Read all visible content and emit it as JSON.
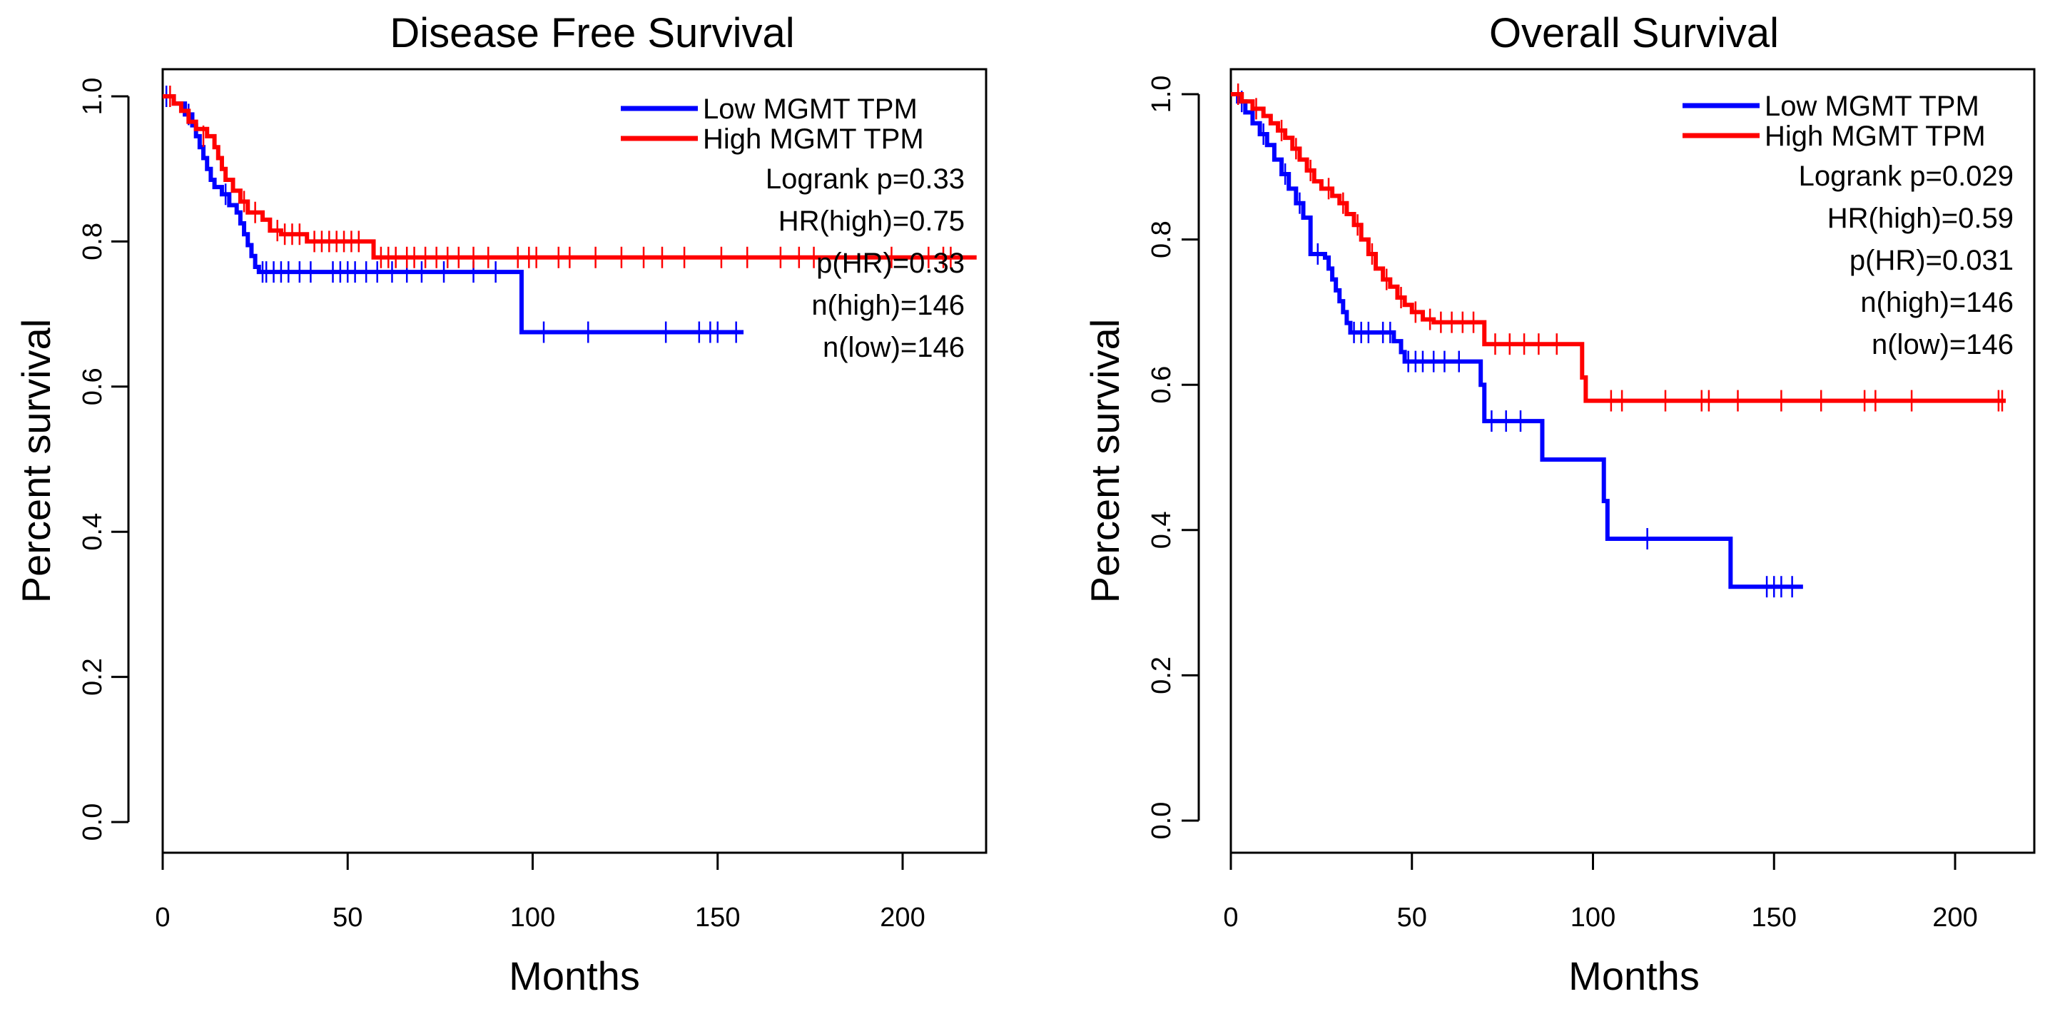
{
  "chart_data": [
    {
      "type": "line",
      "subtype": "kaplan-meier",
      "title": "Disease Free Survival",
      "xlabel": "Months",
      "ylabel": "Percent survival",
      "xlim": [
        0,
        220
      ],
      "ylim": [
        0,
        1
      ],
      "xticks": [
        "0",
        "50",
        "100",
        "150",
        "200"
      ],
      "yticks": [
        "0.0",
        "0.2",
        "0.4",
        "0.6",
        "0.8",
        "1.0"
      ],
      "grid": false,
      "legend_position": "top-right",
      "series": [
        {
          "name": "Low MGMT TPM",
          "color": "#0000ff",
          "steps": [
            [
              0,
              1.0
            ],
            [
              3,
              0.99
            ],
            [
              6,
              0.975
            ],
            [
              8,
              0.96
            ],
            [
              9,
              0.945
            ],
            [
              10,
              0.93
            ],
            [
              11,
              0.915
            ],
            [
              12,
              0.9
            ],
            [
              13,
              0.885
            ],
            [
              14,
              0.875
            ],
            [
              16,
              0.865
            ],
            [
              18,
              0.85
            ],
            [
              20,
              0.84
            ],
            [
              21,
              0.825
            ],
            [
              22,
              0.81
            ],
            [
              23,
              0.795
            ],
            [
              24,
              0.78
            ],
            [
              25,
              0.765
            ],
            [
              26,
              0.758
            ],
            [
              97,
              0.758
            ],
            [
              97,
              0.675
            ],
            [
              157,
              0.675
            ]
          ],
          "censor_marks": [
            [
              1,
              1.0
            ],
            [
              7,
              0.975
            ],
            [
              17,
              0.865
            ],
            [
              27,
              0.758
            ],
            [
              28,
              0.758
            ],
            [
              30,
              0.758
            ],
            [
              32,
              0.758
            ],
            [
              34,
              0.758
            ],
            [
              37,
              0.758
            ],
            [
              40,
              0.758
            ],
            [
              46,
              0.758
            ],
            [
              48,
              0.758
            ],
            [
              50,
              0.758
            ],
            [
              52,
              0.758
            ],
            [
              55,
              0.758
            ],
            [
              58,
              0.758
            ],
            [
              62,
              0.758
            ],
            [
              66,
              0.758
            ],
            [
              70,
              0.758
            ],
            [
              76,
              0.758
            ],
            [
              84,
              0.758
            ],
            [
              90,
              0.758
            ],
            [
              103,
              0.675
            ],
            [
              115,
              0.675
            ],
            [
              136,
              0.675
            ],
            [
              145,
              0.675
            ],
            [
              148,
              0.675
            ],
            [
              150,
              0.675
            ],
            [
              155,
              0.675
            ]
          ]
        },
        {
          "name": "High MGMT TPM",
          "color": "#ff0000",
          "steps": [
            [
              0,
              1.0
            ],
            [
              3,
              0.99
            ],
            [
              5,
              0.98
            ],
            [
              7,
              0.965
            ],
            [
              9,
              0.955
            ],
            [
              12,
              0.945
            ],
            [
              14,
              0.93
            ],
            [
              15,
              0.915
            ],
            [
              16,
              0.9
            ],
            [
              17,
              0.885
            ],
            [
              19,
              0.87
            ],
            [
              21,
              0.855
            ],
            [
              23,
              0.84
            ],
            [
              27,
              0.83
            ],
            [
              29,
              0.815
            ],
            [
              32,
              0.81
            ],
            [
              38,
              0.81
            ],
            [
              39,
              0.8
            ],
            [
              56,
              0.8
            ],
            [
              57,
              0.778
            ],
            [
              220,
              0.778
            ]
          ],
          "censor_marks": [
            [
              2,
              1.0
            ],
            [
              11,
              0.945
            ],
            [
              22,
              0.855
            ],
            [
              25,
              0.84
            ],
            [
              31,
              0.815
            ],
            [
              33,
              0.81
            ],
            [
              35,
              0.81
            ],
            [
              37,
              0.81
            ],
            [
              41,
              0.8
            ],
            [
              43,
              0.8
            ],
            [
              45,
              0.8
            ],
            [
              47,
              0.8
            ],
            [
              49,
              0.8
            ],
            [
              51,
              0.8
            ],
            [
              53,
              0.8
            ],
            [
              59,
              0.778
            ],
            [
              61,
              0.778
            ],
            [
              63,
              0.778
            ],
            [
              66,
              0.778
            ],
            [
              68,
              0.778
            ],
            [
              71,
              0.778
            ],
            [
              74,
              0.778
            ],
            [
              77,
              0.778
            ],
            [
              80,
              0.778
            ],
            [
              84,
              0.778
            ],
            [
              88,
              0.778
            ],
            [
              96,
              0.778
            ],
            [
              99,
              0.778
            ],
            [
              101,
              0.778
            ],
            [
              107,
              0.778
            ],
            [
              110,
              0.778
            ],
            [
              117,
              0.778
            ],
            [
              124,
              0.778
            ],
            [
              130,
              0.778
            ],
            [
              135,
              0.778
            ],
            [
              141,
              0.778
            ],
            [
              151,
              0.778
            ],
            [
              158,
              0.778
            ],
            [
              167,
              0.778
            ],
            [
              172,
              0.778
            ],
            [
              176,
              0.778
            ],
            [
              197,
              0.778
            ],
            [
              207,
              0.778
            ],
            [
              211,
              0.778
            ],
            [
              213,
              0.778
            ]
          ]
        }
      ],
      "stats": {
        "logrank": "Logrank p=0.33",
        "hr": "HR(high)=0.75",
        "p_hr": "p(HR)=0.33",
        "n_high": "n(high)=146",
        "n_low": "n(low)=146"
      }
    },
    {
      "type": "line",
      "subtype": "kaplan-meier",
      "title": "Overall Survival",
      "xlabel": "Months",
      "ylabel": "Percent survival",
      "xlim": [
        0,
        220
      ],
      "ylim": [
        0,
        1
      ],
      "xticks": [
        "0",
        "50",
        "100",
        "150",
        "200"
      ],
      "yticks": [
        "0.0",
        "0.2",
        "0.4",
        "0.6",
        "0.8",
        "1.0"
      ],
      "grid": false,
      "legend_position": "top-right",
      "series": [
        {
          "name": "Low MGMT TPM",
          "color": "#0000ff",
          "steps": [
            [
              0,
              1.0
            ],
            [
              2,
              0.99
            ],
            [
              4,
              0.975
            ],
            [
              6,
              0.96
            ],
            [
              8,
              0.945
            ],
            [
              10,
              0.93
            ],
            [
              12,
              0.91
            ],
            [
              14,
              0.89
            ],
            [
              16,
              0.87
            ],
            [
              18,
              0.85
            ],
            [
              20,
              0.83
            ],
            [
              22,
              0.78
            ],
            [
              26,
              0.775
            ],
            [
              27,
              0.76
            ],
            [
              28,
              0.745
            ],
            [
              29,
              0.73
            ],
            [
              30,
              0.715
            ],
            [
              31,
              0.7
            ],
            [
              32,
              0.685
            ],
            [
              33,
              0.672
            ],
            [
              40,
              0.672
            ],
            [
              45,
              0.66
            ],
            [
              47,
              0.645
            ],
            [
              48,
              0.632
            ],
            [
              68,
              0.632
            ],
            [
              69,
              0.6
            ],
            [
              70,
              0.55
            ],
            [
              85,
              0.55
            ],
            [
              86,
              0.497
            ],
            [
              102,
              0.497
            ],
            [
              103,
              0.44
            ],
            [
              104,
              0.388
            ],
            [
              137,
              0.388
            ],
            [
              138,
              0.322
            ],
            [
              158,
              0.322
            ]
          ],
          "censor_marks": [
            [
              3,
              0.99
            ],
            [
              9,
              0.945
            ],
            [
              15,
              0.89
            ],
            [
              19,
              0.85
            ],
            [
              24,
              0.78
            ],
            [
              34,
              0.672
            ],
            [
              36,
              0.672
            ],
            [
              38,
              0.672
            ],
            [
              42,
              0.672
            ],
            [
              44,
              0.672
            ],
            [
              49,
              0.632
            ],
            [
              51,
              0.632
            ],
            [
              53,
              0.632
            ],
            [
              56,
              0.632
            ],
            [
              59,
              0.632
            ],
            [
              63,
              0.632
            ],
            [
              72,
              0.55
            ],
            [
              76,
              0.55
            ],
            [
              80,
              0.55
            ],
            [
              115,
              0.388
            ],
            [
              148,
              0.322
            ],
            [
              150,
              0.322
            ],
            [
              152,
              0.322
            ],
            [
              155,
              0.322
            ]
          ]
        },
        {
          "name": "High MGMT TPM",
          "color": "#ff0000",
          "steps": [
            [
              0,
              1.0
            ],
            [
              3,
              0.99
            ],
            [
              6,
              0.98
            ],
            [
              9,
              0.97
            ],
            [
              11,
              0.96
            ],
            [
              13,
              0.95
            ],
            [
              15,
              0.94
            ],
            [
              17,
              0.925
            ],
            [
              19,
              0.91
            ],
            [
              21,
              0.895
            ],
            [
              23,
              0.88
            ],
            [
              25,
              0.87
            ],
            [
              28,
              0.86
            ],
            [
              30,
              0.85
            ],
            [
              32,
              0.835
            ],
            [
              34,
              0.82
            ],
            [
              36,
              0.8
            ],
            [
              38,
              0.78
            ],
            [
              40,
              0.76
            ],
            [
              42,
              0.745
            ],
            [
              44,
              0.735
            ],
            [
              46,
              0.72
            ],
            [
              48,
              0.71
            ],
            [
              50,
              0.7
            ],
            [
              53,
              0.69
            ],
            [
              56,
              0.686
            ],
            [
              69,
              0.686
            ],
            [
              70,
              0.656
            ],
            [
              96,
              0.656
            ],
            [
              97,
              0.61
            ],
            [
              98,
              0.578
            ],
            [
              214,
              0.578
            ]
          ],
          "censor_marks": [
            [
              2,
              1.0
            ],
            [
              7,
              0.98
            ],
            [
              14,
              0.95
            ],
            [
              18,
              0.925
            ],
            [
              22,
              0.895
            ],
            [
              27,
              0.87
            ],
            [
              31,
              0.85
            ],
            [
              35,
              0.82
            ],
            [
              39,
              0.78
            ],
            [
              43,
              0.745
            ],
            [
              47,
              0.72
            ],
            [
              51,
              0.7
            ],
            [
              55,
              0.69
            ],
            [
              58,
              0.686
            ],
            [
              61,
              0.686
            ],
            [
              64,
              0.686
            ],
            [
              67,
              0.686
            ],
            [
              73,
              0.656
            ],
            [
              77,
              0.656
            ],
            [
              81,
              0.656
            ],
            [
              85,
              0.656
            ],
            [
              90,
              0.656
            ],
            [
              105,
              0.578
            ],
            [
              108,
              0.578
            ],
            [
              120,
              0.578
            ],
            [
              130,
              0.578
            ],
            [
              132,
              0.578
            ],
            [
              140,
              0.578
            ],
            [
              152,
              0.578
            ],
            [
              163,
              0.578
            ],
            [
              175,
              0.578
            ],
            [
              178,
              0.578
            ],
            [
              188,
              0.578
            ],
            [
              212,
              0.578
            ],
            [
              213,
              0.578
            ]
          ]
        }
      ],
      "stats": {
        "logrank": "Logrank p=0.029",
        "hr": "HR(high)=0.59",
        "p_hr": "p(HR)=0.031",
        "n_high": "n(high)=146",
        "n_low": "n(low)=146"
      }
    }
  ]
}
